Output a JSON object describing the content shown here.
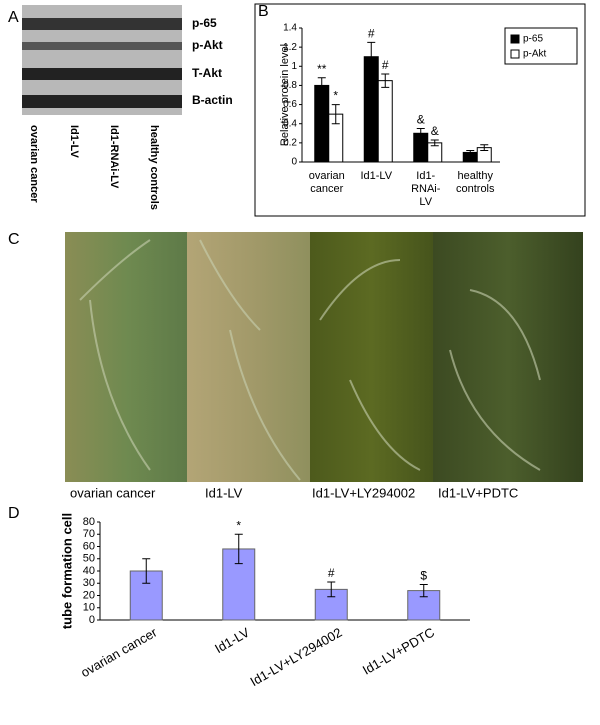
{
  "panels": {
    "a": "A",
    "b": "B",
    "c": "C",
    "d": "D"
  },
  "blot": {
    "bands": [
      "p-65",
      "p-Akt",
      "T-Akt",
      "B-actin"
    ],
    "lanes": [
      "ovarian cancer",
      "Id1-LV",
      "Id1-RNAi-LV",
      "healthy controls"
    ]
  },
  "micrographs": {
    "labels": [
      "ovarian cancer",
      "Id1-LV",
      "Id1-LV+LY294002",
      "Id1-LV+PDTC"
    ]
  },
  "chart_data": [
    {
      "type": "grouped-bar",
      "ylabel": "Relative protein level",
      "categories": [
        "ovarian cancer",
        "Id1-LV",
        "Id1-RNAi-LV",
        "healthy controls"
      ],
      "series": [
        {
          "name": "p-65",
          "color": "#000000",
          "values": [
            0.8,
            1.1,
            0.3,
            0.1
          ],
          "errors": [
            0.08,
            0.15,
            0.05,
            0.02
          ],
          "annotations": [
            "**",
            "#",
            "&",
            null
          ]
        },
        {
          "name": "p-Akt",
          "color": "#ffffff",
          "values": [
            0.5,
            0.85,
            0.2,
            0.15
          ],
          "errors": [
            0.1,
            0.07,
            0.03,
            0.03
          ],
          "annotations": [
            "*",
            "#",
            "&",
            null
          ]
        }
      ],
      "ylim": [
        0,
        1.4
      ],
      "yticks": [
        0,
        0.2,
        0.4,
        0.6,
        0.8,
        1,
        1.2,
        1.4
      ],
      "legend": "top-right"
    },
    {
      "type": "bar",
      "ylabel": "tube formation cell",
      "categories": [
        "ovarian cancer",
        "Id1-LV",
        "Id1-LV+LY294002",
        "Id1-LV+PDTC"
      ],
      "values": [
        40,
        58,
        25,
        24
      ],
      "errors": [
        10,
        12,
        6,
        5
      ],
      "annotations": [
        null,
        "*",
        "#",
        "$"
      ],
      "color": "#9999ff",
      "ylim": [
        0,
        80
      ],
      "yticks": [
        0,
        10,
        20,
        30,
        40,
        50,
        60,
        70,
        80
      ]
    }
  ]
}
